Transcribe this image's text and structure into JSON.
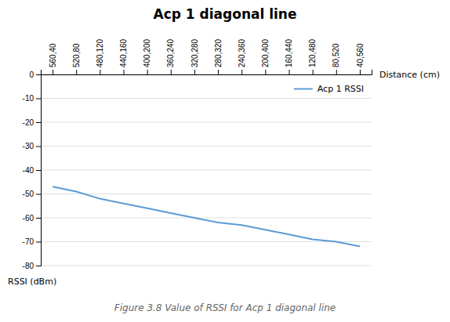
{
  "chart_data": {
    "type": "line",
    "title": "Acp 1 diagonal line",
    "x_label": "Distance (cm)",
    "y_label": "RSSI (dBm)",
    "caption": "Figure 3.8 Value of RSSI for Acp 1 diagonal line",
    "categories": [
      "560,40",
      "520,80",
      "480,120",
      "440,160",
      "400,200",
      "360,240",
      "320,280",
      "280,320",
      "240,360",
      "200,400",
      "160,440",
      "120,480",
      "80,520",
      "40,560"
    ],
    "series": [
      {
        "name": "Acp 1 RSSI",
        "color": "#5B9BD5",
        "values": [
          -47,
          -49,
          -52,
          -54,
          -56,
          -58,
          -60,
          -62,
          -63,
          -65,
          -67,
          -69,
          -70,
          -72
        ]
      }
    ],
    "ylim": [
      -80,
      0
    ],
    "yticks": [
      0,
      -10,
      -20,
      -30,
      -40,
      -50,
      -60,
      -70,
      -80
    ],
    "grid": true,
    "legend": "upper right"
  }
}
